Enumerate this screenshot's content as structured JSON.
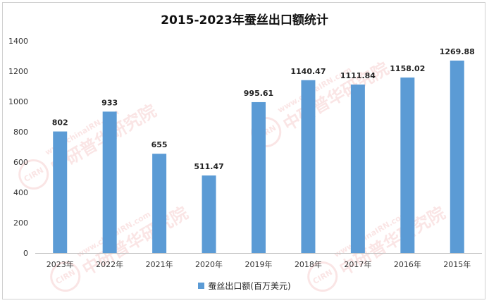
{
  "chart_data": {
    "type": "bar",
    "title": "2015-2023年蚕丝出口额统计",
    "categories": [
      "2023年",
      "2022年",
      "2021年",
      "2020年",
      "2019年",
      "2018年",
      "2017年",
      "2016年",
      "2015年"
    ],
    "series": [
      {
        "name": "蚕丝出口额(百万美元)",
        "values": [
          802,
          933,
          655,
          511.47,
          995.61,
          1140.47,
          1111.84,
          1158.02,
          1269.88
        ],
        "labels": [
          "802",
          "933",
          "655",
          "511.47",
          "995.61",
          "1140.47",
          "1111.84",
          "1158.02",
          "1269.88"
        ],
        "color": "#5b9bd5"
      }
    ],
    "ylim": [
      0,
      1400
    ],
    "yticks": [
      "0",
      "200",
      "400",
      "600",
      "800",
      "1000",
      "1200",
      "1400"
    ],
    "grid": false,
    "legend_position": "bottom"
  },
  "watermark": {
    "text_cn": "中研普华研究院",
    "text_url": "www.chinaIRN.com",
    "badge": "CIRN"
  }
}
